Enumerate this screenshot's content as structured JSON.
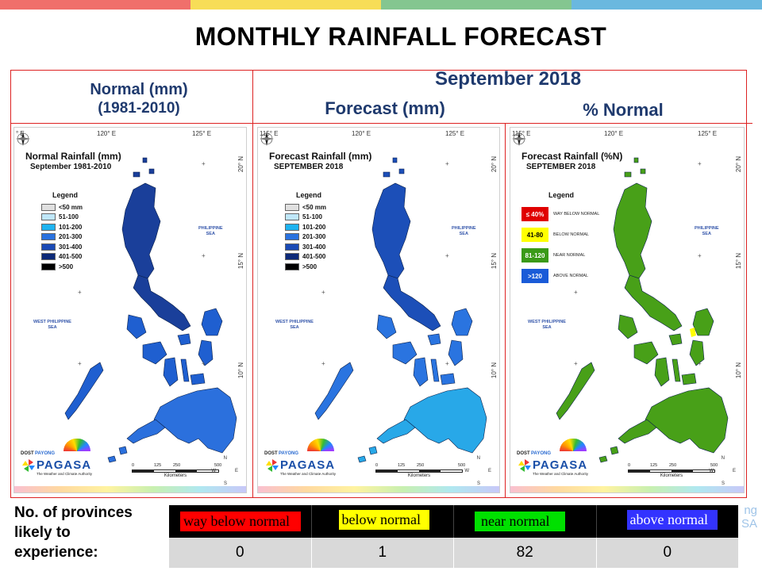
{
  "slide_title": "MONTHLY RAINFALL FORECAST",
  "stripe_colors": [
    "#f06f6b",
    "#f7dd57",
    "#84c690",
    "#6ab8df"
  ],
  "headers": {
    "normal_line1": "Normal (mm)",
    "normal_line2": "(1981-2010)",
    "month": "September 2018",
    "forecast": "Forecast (mm)",
    "percent": "% Normal"
  },
  "maps": [
    {
      "title": "Normal Rainfall (mm)",
      "subtitle": "September 1981-2010",
      "coords": {
        "top_left": "° E",
        "top_mid": "120° E",
        "top_right": "125° E",
        "right_1": "20° N",
        "right_2": "15° N",
        "right_3": "10° N"
      },
      "land_color": "#1f5fd0",
      "north_color": "#1a3f9a",
      "south_color": "#2b70dd"
    },
    {
      "title": "Forecast Rainfall (mm)",
      "subtitle": "SEPTEMBER 2018",
      "coords": {
        "top_left": "115° E",
        "top_mid": "120° E",
        "top_right": "125° E",
        "right_1": "20° N",
        "right_2": "15° N",
        "right_3": "10° N"
      },
      "land_color": "#2a74e0",
      "north_color": "#1c4fb8",
      "south_color": "#28a8e8"
    },
    {
      "title": "Forecast Rainfall (%N)",
      "subtitle": "SEPTEMBER 2018",
      "coords": {
        "top_left": "115° E",
        "top_mid": "120° E",
        "top_right": "125° E",
        "right_1": "20° N",
        "right_2": "15° N",
        "right_3": "10° N"
      },
      "land_color": "#48a018",
      "north_color": "#48a018",
      "south_color": "#48a018"
    }
  ],
  "sea_labels": {
    "philippine_sea_1": "PHILIPPINE",
    "philippine_sea_2": "SEA",
    "west_ph_sea_1": "WEST PHILIPPINE",
    "west_ph_sea_2": "SEA"
  },
  "legend_mm": {
    "title": "Legend",
    "items": [
      {
        "label": "<50 mm",
        "color": "#e0e0e0"
      },
      {
        "label": "51-100",
        "color": "#bfe7fa"
      },
      {
        "label": "101-200",
        "color": "#1fb3f0"
      },
      {
        "label": "201-300",
        "color": "#2a72df"
      },
      {
        "label": "301-400",
        "color": "#1a4ab5"
      },
      {
        "label": "401-500",
        "color": "#0d2a78"
      },
      {
        "label": ">500",
        "color": "#000000"
      }
    ]
  },
  "legend_pct": {
    "title": "Legend",
    "items": [
      {
        "code": "≤ 40%",
        "label": "WAY BELOW NORMAL",
        "color": "#e00000",
        "text_color": "#ffffff"
      },
      {
        "code": "41-80",
        "label": "BELOW NORMAL",
        "color": "#ffff00",
        "text_color": "#000000"
      },
      {
        "code": "81-120",
        "label": "NEAR NORMAL",
        "color": "#3a9a18",
        "text_color": "#ffffff"
      },
      {
        "code": ">120",
        "label": "ABOVE NORMAL",
        "color": "#1a5bd8",
        "text_color": "#ffffff"
      }
    ]
  },
  "scale": {
    "ticks": [
      "0",
      "125",
      "250",
      "500"
    ],
    "unit": "Kilometers"
  },
  "logo": {
    "dost": "DOST",
    "payong": "PAYONG",
    "pagasa": "PAGASA",
    "tagline": "The Weather and Climate Authority"
  },
  "compass": {
    "n": "N",
    "e": "E",
    "s": "S",
    "w": "W"
  },
  "stats": {
    "label_1": "No. of provinces",
    "label_2": "likely to",
    "label_3": "experience:",
    "categories": [
      {
        "label": "way below normal",
        "bg": "#ff0000",
        "count": "0"
      },
      {
        "label": "below normal",
        "bg": "#ffff00",
        "count": "1"
      },
      {
        "label": "near normal",
        "bg": "#00e000",
        "count": "82"
      },
      {
        "label": "above normal",
        "bg": "#3333ff",
        "count": "0"
      }
    ]
  },
  "ghost_text_1": "ng",
  "ghost_text_2": "SA"
}
